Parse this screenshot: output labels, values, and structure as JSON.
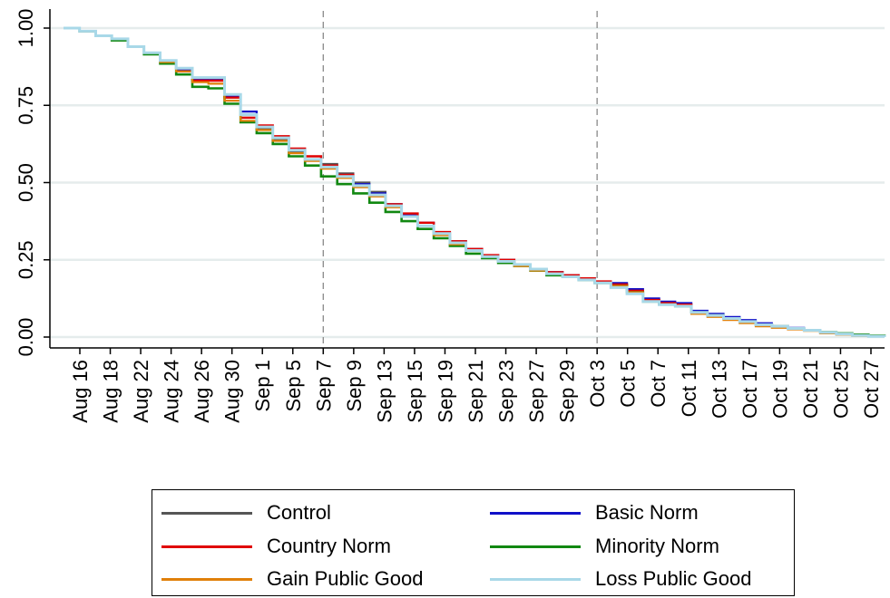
{
  "chart_data": {
    "type": "line",
    "title": "",
    "xlabel": "",
    "ylabel": "",
    "ylim": [
      0,
      1
    ],
    "yticks": [
      "0.00",
      "0.25",
      "0.50",
      "0.75",
      "1.00"
    ],
    "ytick_values": [
      0,
      0.25,
      0.5,
      0.75,
      1.0
    ],
    "xticks": [
      "Aug 16",
      "Aug 18",
      "Aug 22",
      "Aug 24",
      "Aug 26",
      "Aug 30",
      "Sep 1",
      "Sep 5",
      "Sep 7",
      "Sep 9",
      "Sep 13",
      "Sep 15",
      "Sep 19",
      "Sep 21",
      "Sep 23",
      "Sep 27",
      "Sep 29",
      "Oct 3",
      "Oct 5",
      "Oct 7",
      "Oct 11",
      "Oct 13",
      "Oct 17",
      "Oct 19",
      "Oct 21",
      "Oct 25",
      "Oct 27"
    ],
    "reference_lines": [
      "Sep 7",
      "Oct 3"
    ],
    "grid": true,
    "legend_position": "bottom",
    "series": [
      {
        "name": "Control",
        "color": "#555555",
        "width": 2.2,
        "values": [
          1.0,
          0.99,
          0.975,
          0.965,
          0.94,
          0.92,
          0.895,
          0.865,
          0.835,
          0.835,
          0.775,
          0.71,
          0.675,
          0.64,
          0.6,
          0.575,
          0.56,
          0.53,
          0.5,
          0.47,
          0.43,
          0.395,
          0.37,
          0.34,
          0.31,
          0.285,
          0.265,
          0.25,
          0.235,
          0.22,
          0.21,
          0.2,
          0.19,
          0.18,
          0.17,
          0.15,
          0.12,
          0.11,
          0.105,
          0.08,
          0.07,
          0.06,
          0.05,
          0.04,
          0.035,
          0.028,
          0.022,
          0.015,
          0.01,
          0.005,
          0.003,
          0.0
        ]
      },
      {
        "name": "Basic Norm",
        "color": "#1010c8",
        "width": 2.2,
        "values": [
          1.0,
          0.99,
          0.975,
          0.965,
          0.94,
          0.92,
          0.895,
          0.865,
          0.835,
          0.835,
          0.78,
          0.73,
          0.68,
          0.645,
          0.605,
          0.575,
          0.55,
          0.525,
          0.495,
          0.465,
          0.43,
          0.395,
          0.37,
          0.34,
          0.31,
          0.285,
          0.265,
          0.25,
          0.235,
          0.22,
          0.21,
          0.2,
          0.19,
          0.18,
          0.175,
          0.155,
          0.125,
          0.115,
          0.11,
          0.085,
          0.075,
          0.065,
          0.055,
          0.045,
          0.035,
          0.03,
          0.022,
          0.015,
          0.01,
          0.006,
          0.003,
          0.0
        ]
      },
      {
        "name": "Country Norm",
        "color": "#e00000",
        "width": 2.4,
        "values": [
          1.0,
          0.99,
          0.975,
          0.965,
          0.94,
          0.92,
          0.895,
          0.86,
          0.83,
          0.83,
          0.775,
          0.71,
          0.685,
          0.65,
          0.61,
          0.585,
          0.555,
          0.525,
          0.49,
          0.46,
          0.43,
          0.4,
          0.37,
          0.34,
          0.31,
          0.285,
          0.265,
          0.25,
          0.235,
          0.22,
          0.21,
          0.2,
          0.19,
          0.18,
          0.17,
          0.15,
          0.12,
          0.11,
          0.105,
          0.08,
          0.07,
          0.06,
          0.05,
          0.04,
          0.035,
          0.028,
          0.022,
          0.015,
          0.01,
          0.005,
          0.003,
          0.0
        ]
      },
      {
        "name": "Minority Norm",
        "color": "#118811",
        "width": 2.6,
        "values": [
          1.0,
          0.99,
          0.975,
          0.96,
          0.94,
          0.915,
          0.885,
          0.85,
          0.81,
          0.805,
          0.755,
          0.695,
          0.66,
          0.625,
          0.585,
          0.555,
          0.52,
          0.495,
          0.465,
          0.435,
          0.405,
          0.375,
          0.35,
          0.32,
          0.295,
          0.27,
          0.255,
          0.24,
          0.23,
          0.215,
          0.2,
          0.195,
          0.185,
          0.175,
          0.165,
          0.145,
          0.115,
          0.105,
          0.1,
          0.08,
          0.07,
          0.06,
          0.05,
          0.04,
          0.035,
          0.028,
          0.022,
          0.016,
          0.012,
          0.008,
          0.004,
          0.0
        ]
      },
      {
        "name": "Gain Public Good",
        "color": "#e0800a",
        "width": 2.2,
        "values": [
          1.0,
          0.99,
          0.975,
          0.965,
          0.94,
          0.92,
          0.89,
          0.86,
          0.825,
          0.82,
          0.765,
          0.7,
          0.67,
          0.635,
          0.595,
          0.57,
          0.545,
          0.515,
          0.485,
          0.455,
          0.42,
          0.39,
          0.36,
          0.33,
          0.3,
          0.28,
          0.26,
          0.245,
          0.23,
          0.215,
          0.205,
          0.195,
          0.185,
          0.175,
          0.165,
          0.145,
          0.115,
          0.105,
          0.1,
          0.075,
          0.065,
          0.055,
          0.045,
          0.035,
          0.03,
          0.025,
          0.02,
          0.012,
          0.008,
          0.004,
          0.002,
          0.0
        ]
      },
      {
        "name": "Loss Public Good",
        "color": "#a8d8e8",
        "width": 3.0,
        "values": [
          1.0,
          0.99,
          0.975,
          0.965,
          0.94,
          0.92,
          0.895,
          0.87,
          0.84,
          0.84,
          0.785,
          0.72,
          0.68,
          0.645,
          0.605,
          0.575,
          0.55,
          0.52,
          0.49,
          0.46,
          0.425,
          0.39,
          0.36,
          0.335,
          0.305,
          0.28,
          0.26,
          0.245,
          0.235,
          0.22,
          0.205,
          0.195,
          0.185,
          0.175,
          0.16,
          0.14,
          0.115,
          0.105,
          0.1,
          0.08,
          0.07,
          0.06,
          0.05,
          0.04,
          0.035,
          0.028,
          0.022,
          0.015,
          0.01,
          0.005,
          0.002,
          0.0
        ]
      }
    ]
  },
  "legend": {
    "items": [
      {
        "label": "Control",
        "color": "#555555"
      },
      {
        "label": "Basic Norm",
        "color": "#1010c8"
      },
      {
        "label": "Country Norm",
        "color": "#e00000"
      },
      {
        "label": "Minority Norm",
        "color": "#118811"
      },
      {
        "label": "Gain Public Good",
        "color": "#e0800a"
      },
      {
        "label": "Loss Public Good",
        "color": "#a8d8e8"
      }
    ]
  }
}
